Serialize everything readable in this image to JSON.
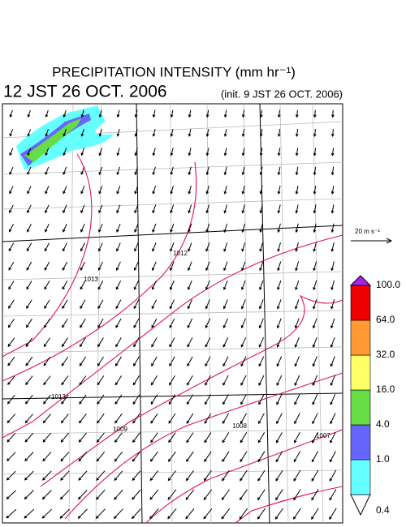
{
  "header": {
    "title": "PRECIPITATION INTENSITY (mm hr⁻¹)",
    "valid_time": "12 JST 26 OCT. 2006",
    "init_time": "(init. 9 JST 26 OCT. 2006)"
  },
  "wind_legend": {
    "label": "20 m s⁻¹"
  },
  "isobars": {
    "labels": [
      "1013",
      "1012",
      "1013",
      "1009",
      "1008",
      "1007"
    ]
  },
  "colorbar": {
    "levels": [
      {
        "value": 0.4,
        "label": "0.4"
      },
      {
        "value": 1,
        "label": "1.0"
      },
      {
        "value": 4,
        "label": "4.0"
      },
      {
        "value": 16,
        "label": "16.0"
      },
      {
        "value": 32,
        "label": "32.0"
      },
      {
        "value": 64,
        "label": "64.0"
      },
      {
        "value": 100,
        "label": "100.0"
      }
    ],
    "colors": [
      "#66ffff",
      "#6666ff",
      "#66dd44",
      "#ffff66",
      "#ff9933",
      "#ee0000"
    ],
    "under_color": "#ffffff",
    "over_color": "#aa22ee"
  }
}
